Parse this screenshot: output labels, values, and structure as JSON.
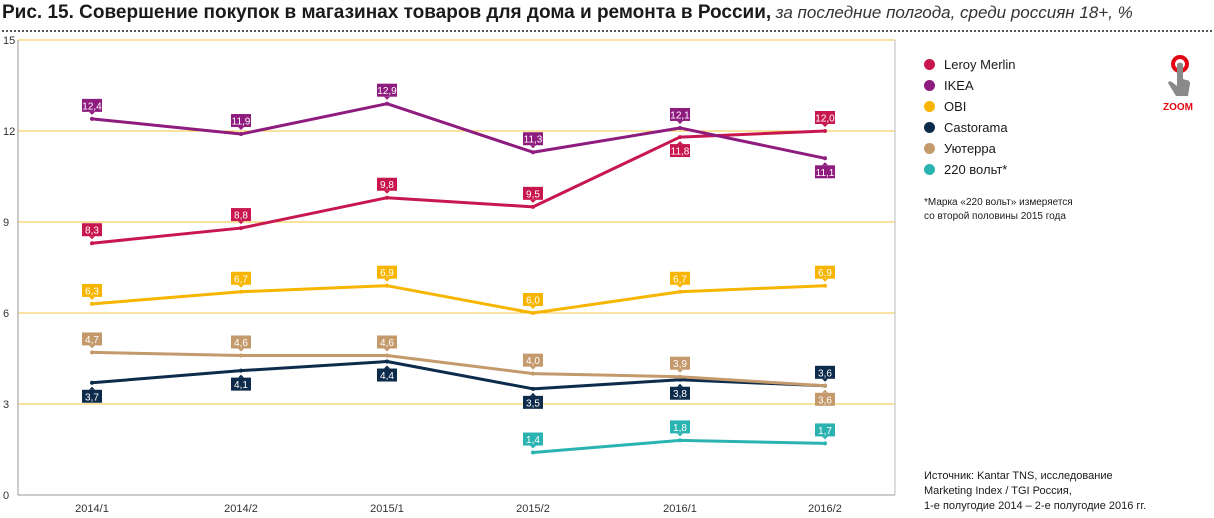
{
  "title": {
    "main": "Рис. 15. Совершение покупок в магазинах товаров для дома и ремонта в России,",
    "sub": "за последние полгода, среди россиян 18+, %"
  },
  "zoom_label": "ZOOM",
  "footnote": "*Марка «220 вольт» измеряется\n со второй половины 2015 года",
  "source": "Источник: Kantar TNS, исследование\nMarketing Index / TGI Россия,\n1-е полугодие 2014 – 2-е полугодие 2016 гг.",
  "colors": {
    "grid": "#f5c542",
    "axis": "#333333",
    "zoom_ring": "#e30613",
    "zoom_hand": "#8a8a8a"
  },
  "chart_data": {
    "type": "line",
    "categories": [
      "2014/1",
      "2014/2",
      "2015/1",
      "2015/2",
      "2016/1",
      "2016/2"
    ],
    "ylim": [
      0,
      15
    ],
    "yticks": [
      0,
      3,
      6,
      9,
      12,
      15
    ],
    "grid": true,
    "legend_position": "right",
    "decimal_separator": ",",
    "series": [
      {
        "name": "Leroy Merlin",
        "color": "#c8174f",
        "values": [
          8.3,
          8.8,
          9.8,
          9.5,
          11.8,
          12.0
        ],
        "label_side": [
          "above",
          "above",
          "above",
          "above",
          "below",
          "above"
        ]
      },
      {
        "name": "IKEA",
        "color": "#8e1b7e",
        "values": [
          12.4,
          11.9,
          12.9,
          11.3,
          12.1,
          11.1
        ],
        "label_side": [
          "above",
          "above",
          "above",
          "above",
          "above",
          "below"
        ]
      },
      {
        "name": "OBI",
        "color": "#f7b500",
        "values": [
          6.3,
          6.7,
          6.9,
          6.0,
          6.7,
          6.9
        ],
        "label_side": [
          "above",
          "above",
          "above",
          "above",
          "above",
          "above"
        ]
      },
      {
        "name": "Castorama",
        "color": "#0d2b4a",
        "values": [
          3.7,
          4.1,
          4.4,
          3.5,
          3.8,
          3.6
        ],
        "label_side": [
          "below",
          "below",
          "below",
          "below",
          "below",
          "above"
        ]
      },
      {
        "name": "Уютерра",
        "color": "#c49a6c",
        "values": [
          4.7,
          4.6,
          4.6,
          4.0,
          3.9,
          3.6
        ],
        "label_side": [
          "above",
          "above",
          "above",
          "above",
          "above",
          "below"
        ]
      },
      {
        "name": "220 вольт*",
        "color": "#2bb3b1",
        "values": [
          null,
          null,
          null,
          1.4,
          1.8,
          1.7
        ],
        "label_side": [
          "above",
          "above",
          "above",
          "above",
          "above",
          "above"
        ]
      }
    ]
  }
}
